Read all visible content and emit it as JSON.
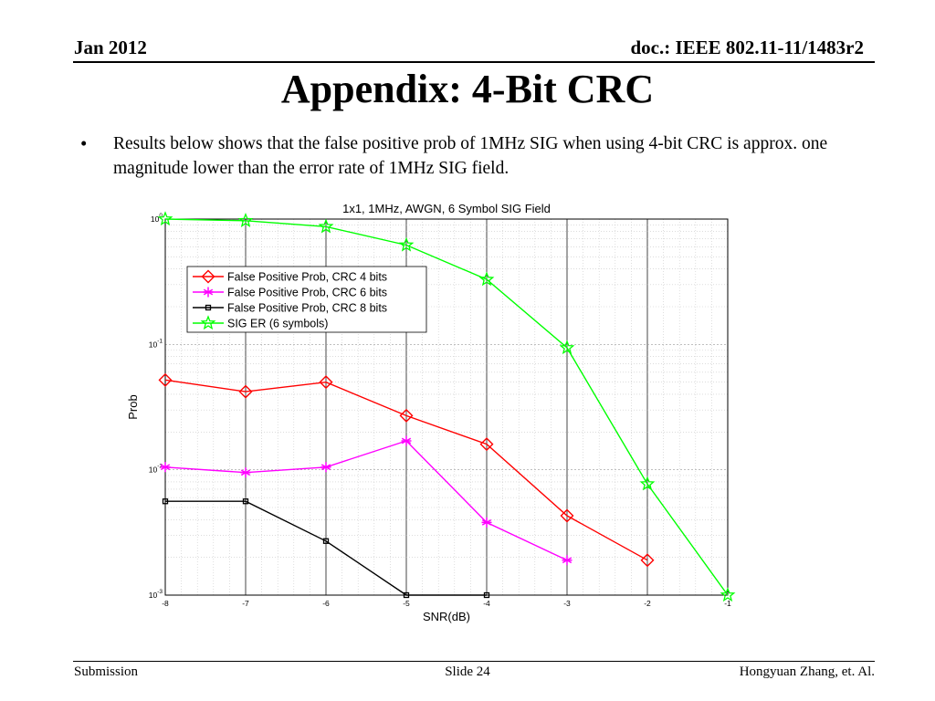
{
  "header": {
    "date": "Jan 2012",
    "doc_id": "doc.: IEEE 802.11-11/1483r2"
  },
  "slide": {
    "title": "Appendix: 4-Bit CRC",
    "bullet_marker": "•",
    "bullet_text": "Results below shows that the false positive prob of 1MHz SIG when using 4-bit CRC is approx. one magnitude lower than the error rate of 1MHz SIG field."
  },
  "footer": {
    "left": "Submission",
    "center": "Slide 24",
    "right": "Hongyuan Zhang, et. Al."
  },
  "chart_data": {
    "type": "line",
    "title": "1x1, 1MHz, AWGN, 6 Symbol SIG Field",
    "xlabel": "SNR(dB)",
    "ylabel": "Prob",
    "xlim": [
      -8,
      -1
    ],
    "ylim": [
      0.001,
      1
    ],
    "y_scale": "log",
    "grid": true,
    "legend_position": "top-left",
    "x_ticks": [
      "-8",
      "-7",
      "-6",
      "-5",
      "-4",
      "-3",
      "-2",
      "-1"
    ],
    "y_ticks": [
      {
        "value": 1,
        "base": "10",
        "exp": "0"
      },
      {
        "value": 0.1,
        "base": "10",
        "exp": "-1"
      },
      {
        "value": 0.01,
        "base": "10",
        "exp": "-2"
      },
      {
        "value": 0.001,
        "base": "10",
        "exp": "-3"
      }
    ],
    "series": [
      {
        "name": "False Positive Prob, CRC 4 bits",
        "color": "#ff0000",
        "marker": "diamond",
        "x": [
          -8,
          -7,
          -6,
          -5,
          -4,
          -3,
          -2
        ],
        "y": [
          0.052,
          0.042,
          0.05,
          0.027,
          0.016,
          0.0043,
          0.0019
        ]
      },
      {
        "name": "False Positive Prob, CRC 6 bits",
        "color": "#ff00ff",
        "marker": "asterisk",
        "x": [
          -8,
          -7,
          -6,
          -5,
          -4,
          -3
        ],
        "y": [
          0.0105,
          0.0095,
          0.0105,
          0.017,
          0.0038,
          0.0019
        ]
      },
      {
        "name": "False Positive Prob, CRC 8 bits",
        "color": "#000000",
        "marker": "square",
        "x": [
          -8,
          -7,
          -6,
          -5,
          -4
        ],
        "y": [
          0.0056,
          0.0056,
          0.0027,
          0.001,
          0.001
        ]
      },
      {
        "name": "SIG ER (6 symbols)",
        "color": "#00ff00",
        "marker": "star",
        "x": [
          -8,
          -7,
          -6,
          -5,
          -4,
          -3,
          -2,
          -1
        ],
        "y": [
          1.0,
          0.97,
          0.87,
          0.62,
          0.33,
          0.094,
          0.0077,
          0.001
        ]
      }
    ]
  }
}
